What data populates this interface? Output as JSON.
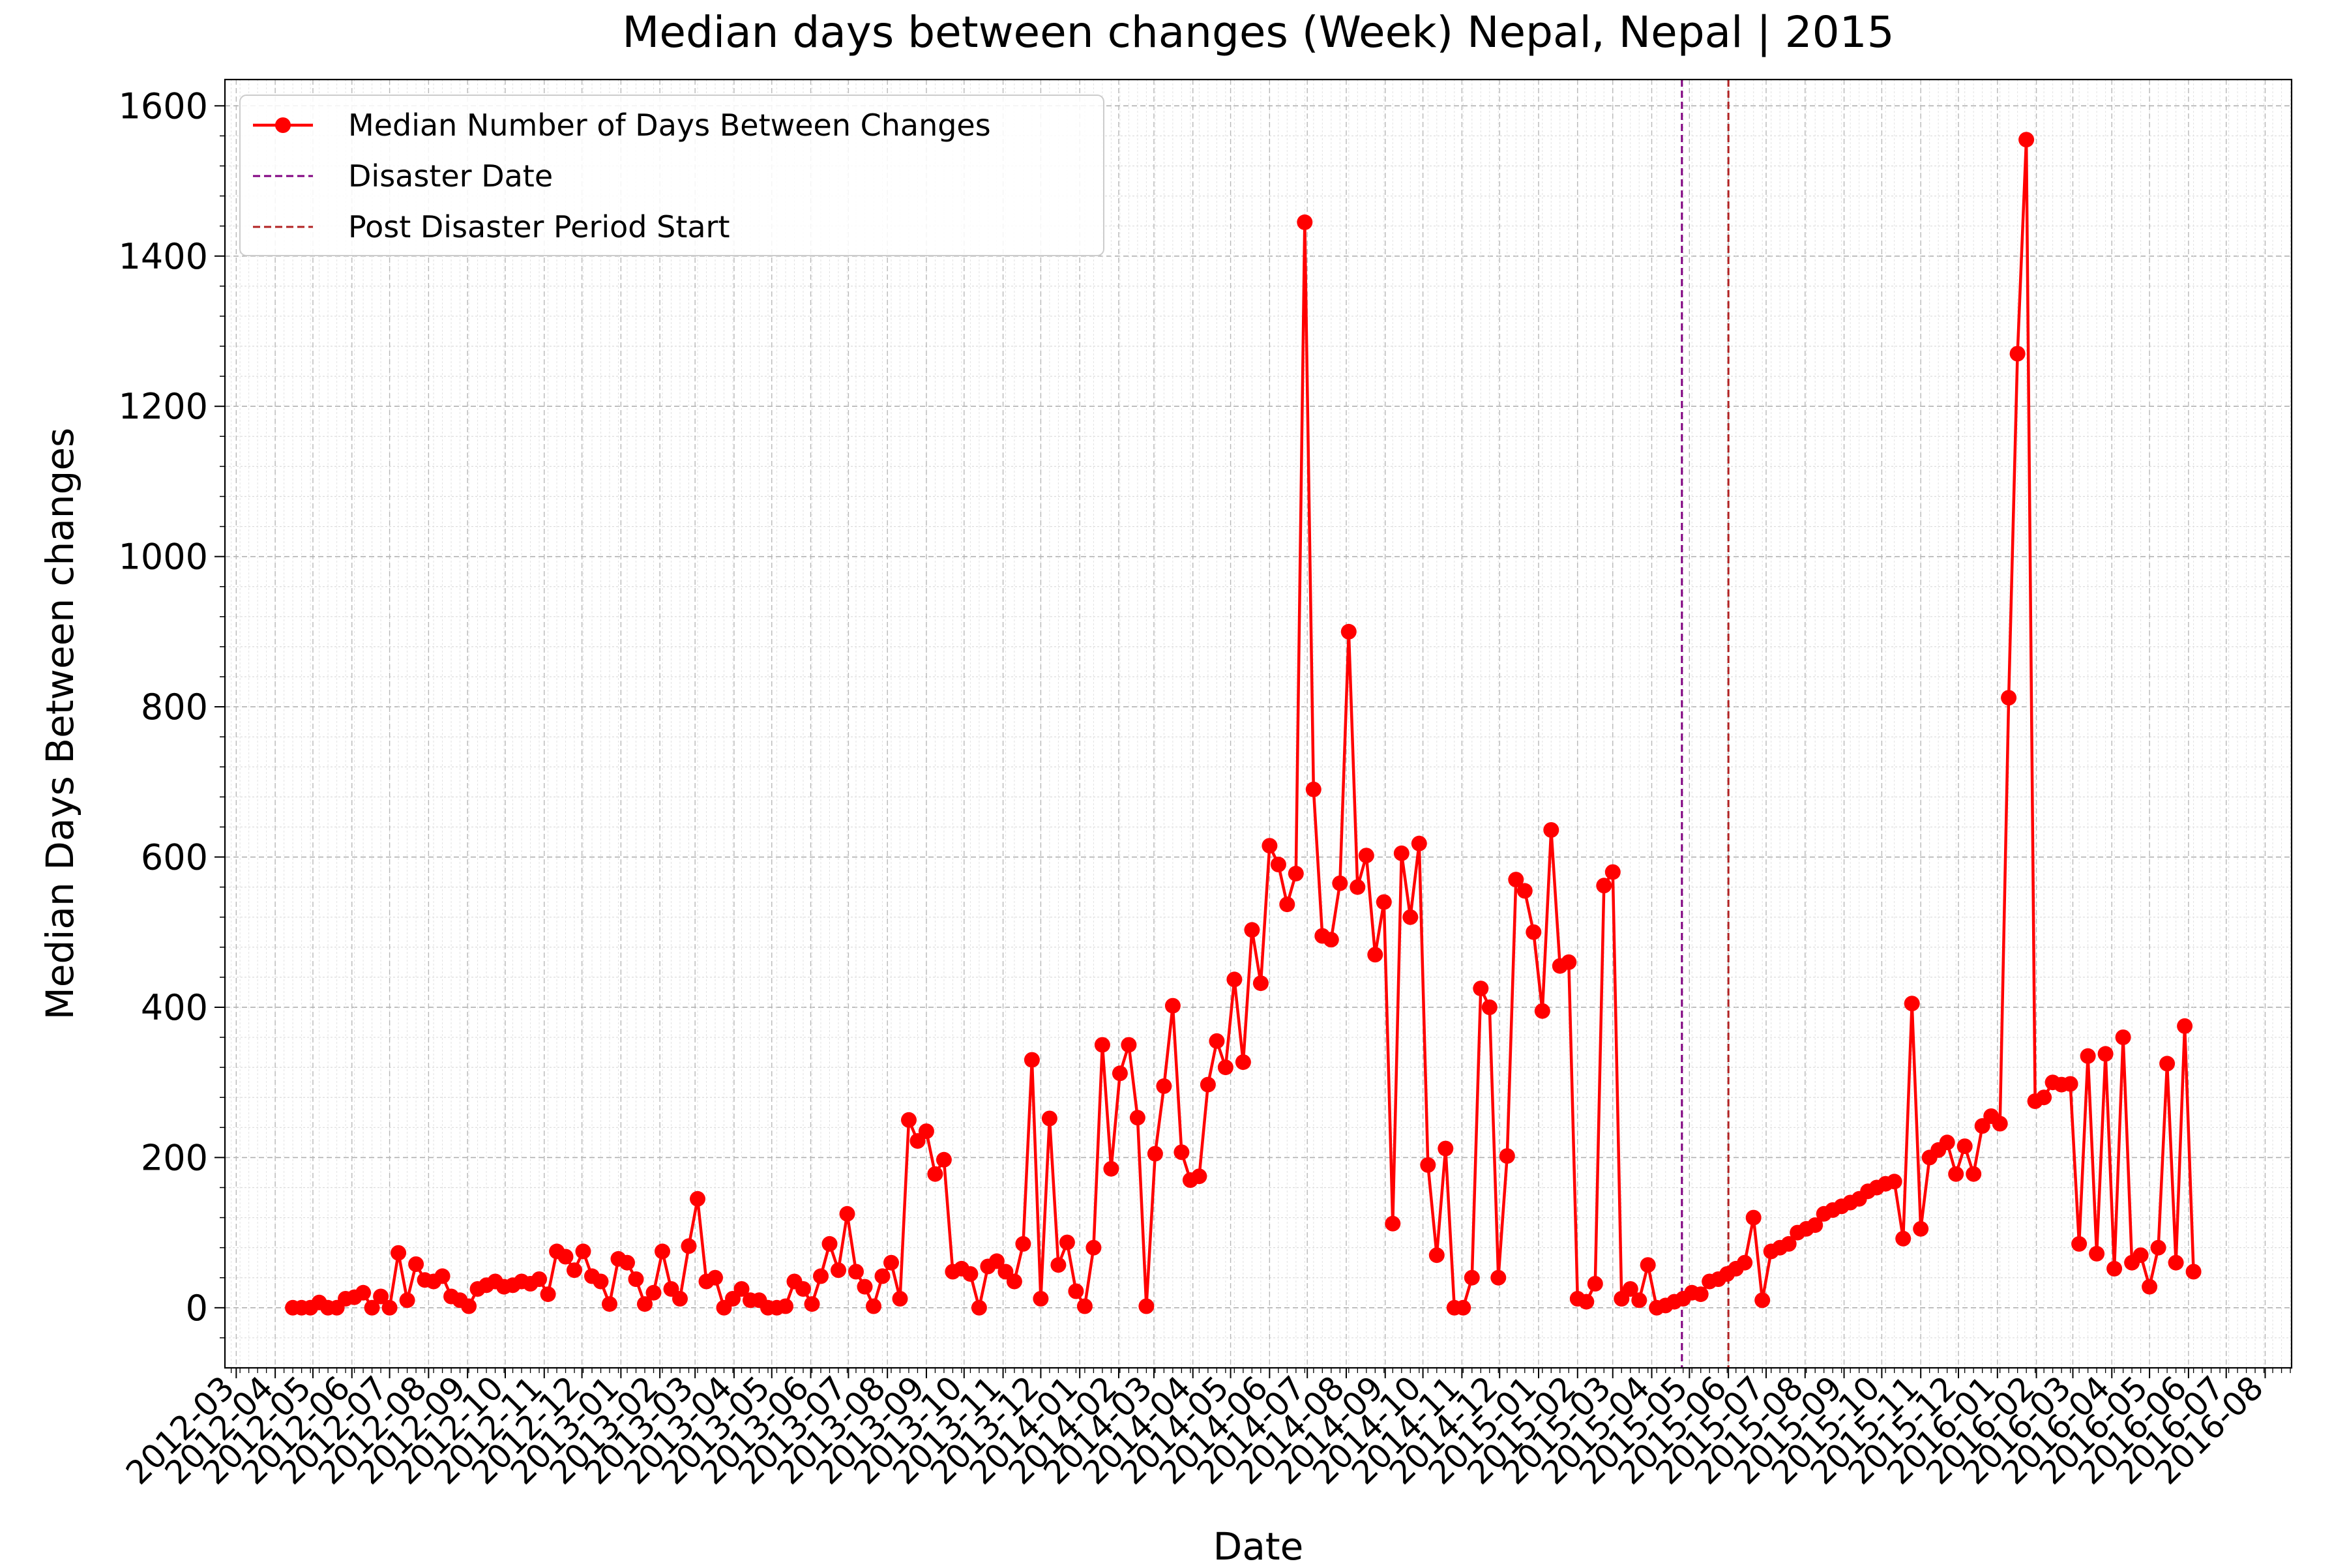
{
  "chart_data": {
    "type": "line",
    "title": "Median days between changes (Week) Nepal, Nepal | 2015",
    "xlabel": "Date",
    "ylabel": "Median Days Between changes",
    "ylim": [
      -80,
      1635
    ],
    "xlim": [
      "2012-02-21",
      "2016-08-22"
    ],
    "grid": true,
    "legend_position": "top-left",
    "x_tick_labels": [
      "2012-03",
      "2012-04",
      "2012-05",
      "2012-06",
      "2012-07",
      "2012-08",
      "2012-09",
      "2012-10",
      "2012-11",
      "2012-12",
      "2013-01",
      "2013-02",
      "2013-03",
      "2013-04",
      "2013-05",
      "2013-06",
      "2013-07",
      "2013-08",
      "2013-09",
      "2013-10",
      "2013-11",
      "2013-12",
      "2014-01",
      "2014-02",
      "2014-03",
      "2014-04",
      "2014-05",
      "2014-06",
      "2014-07",
      "2014-08",
      "2014-09",
      "2014-10",
      "2014-11",
      "2014-12",
      "2015-01",
      "2015-02",
      "2015-03",
      "2015-04",
      "2015-05",
      "2015-06",
      "2015-07",
      "2015-08",
      "2015-09",
      "2015-10",
      "2015-11",
      "2015-12",
      "2016-01",
      "2016-02",
      "2016-03",
      "2016-04",
      "2016-05",
      "2016-06",
      "2016-07",
      "2016-08"
    ],
    "y_ticks": [
      0,
      200,
      400,
      600,
      800,
      1000,
      1200,
      1400,
      1600
    ],
    "series": [
      {
        "name": "Median Number of Days Between Changes",
        "color": "#ff0000",
        "x_start": "2012-04-15",
        "x_step_days": 7,
        "values": [
          0,
          0,
          0,
          7,
          0,
          0,
          12,
          14,
          20,
          0,
          15,
          0,
          73,
          10,
          58,
          37,
          35,
          42,
          15,
          10,
          2,
          25,
          30,
          35,
          28,
          30,
          35,
          32,
          38,
          18,
          75,
          68,
          50,
          75,
          42,
          35,
          5,
          65,
          60,
          38,
          5,
          20,
          75,
          25,
          12,
          82,
          145,
          35,
          40,
          0,
          12,
          25,
          10,
          10,
          0,
          0,
          2,
          35,
          25,
          5,
          42,
          85,
          50,
          125,
          48,
          28,
          2,
          42,
          60,
          12,
          250,
          222,
          235,
          178,
          197,
          48,
          52,
          45,
          0,
          55,
          62,
          48,
          35,
          85,
          330,
          12,
          252,
          57,
          87,
          22,
          2,
          80,
          350,
          185,
          312,
          350,
          253,
          2,
          205,
          295,
          402,
          207,
          170,
          175,
          297,
          355,
          320,
          437,
          327,
          503,
          432,
          615,
          590,
          537,
          578,
          1445,
          690,
          495,
          490,
          565,
          900,
          560,
          602,
          470,
          540,
          112,
          605,
          520,
          618,
          190,
          70,
          212,
          0,
          0,
          40,
          425,
          400,
          40,
          202,
          570,
          555,
          500,
          395,
          636,
          455,
          460,
          12,
          8,
          32,
          562,
          580,
          12,
          25,
          10,
          57,
          0,
          3,
          8,
          12,
          20,
          18,
          35,
          38,
          45,
          52,
          60,
          120,
          10,
          75,
          80,
          85,
          100,
          105,
          110,
          125,
          130,
          135,
          140,
          145,
          155,
          160,
          165,
          168,
          92,
          405,
          105,
          200,
          210,
          220,
          178,
          215,
          178,
          242,
          255,
          245,
          812,
          1270,
          1555,
          275,
          280,
          300,
          297,
          298,
          85,
          335,
          72,
          338,
          52,
          360,
          60,
          70,
          28,
          80,
          325,
          60,
          375,
          48
        ]
      }
    ],
    "vertical_lines": [
      {
        "name": "Disaster Date",
        "x": "2015-04-25",
        "color": "#800080",
        "style": "dashed"
      },
      {
        "name": "Post Disaster Period Start",
        "x": "2015-06-01",
        "color": "#b22222",
        "style": "dashed"
      }
    ]
  }
}
